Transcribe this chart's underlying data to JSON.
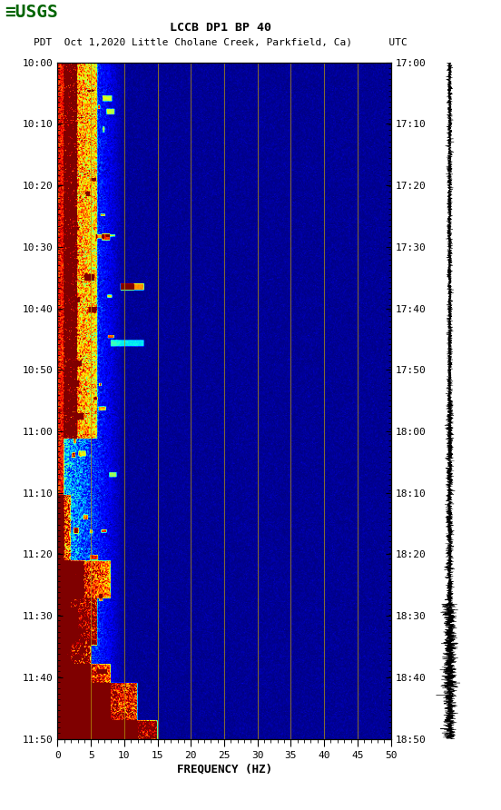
{
  "title_line1": "LCCB DP1 BP 40",
  "title_line2": "PDT  Oct 1,2020 Little Cholane Creek, Parkfield, Ca)      UTC",
  "left_times": [
    "10:00",
    "10:10",
    "10:20",
    "10:30",
    "10:40",
    "10:50",
    "11:00",
    "11:10",
    "11:20",
    "11:30",
    "11:40",
    "11:50"
  ],
  "right_times": [
    "17:00",
    "17:10",
    "17:20",
    "17:30",
    "17:40",
    "17:50",
    "18:00",
    "18:10",
    "18:20",
    "18:30",
    "18:40",
    "18:50"
  ],
  "xlabel": "FREQUENCY (HZ)",
  "xmin": 0,
  "xmax": 50,
  "xticks": [
    0,
    5,
    10,
    15,
    20,
    25,
    30,
    35,
    40,
    45,
    50
  ],
  "freq_gridlines": [
    5,
    10,
    15,
    20,
    25,
    30,
    35,
    40,
    45
  ],
  "background_color": "#ffffff"
}
